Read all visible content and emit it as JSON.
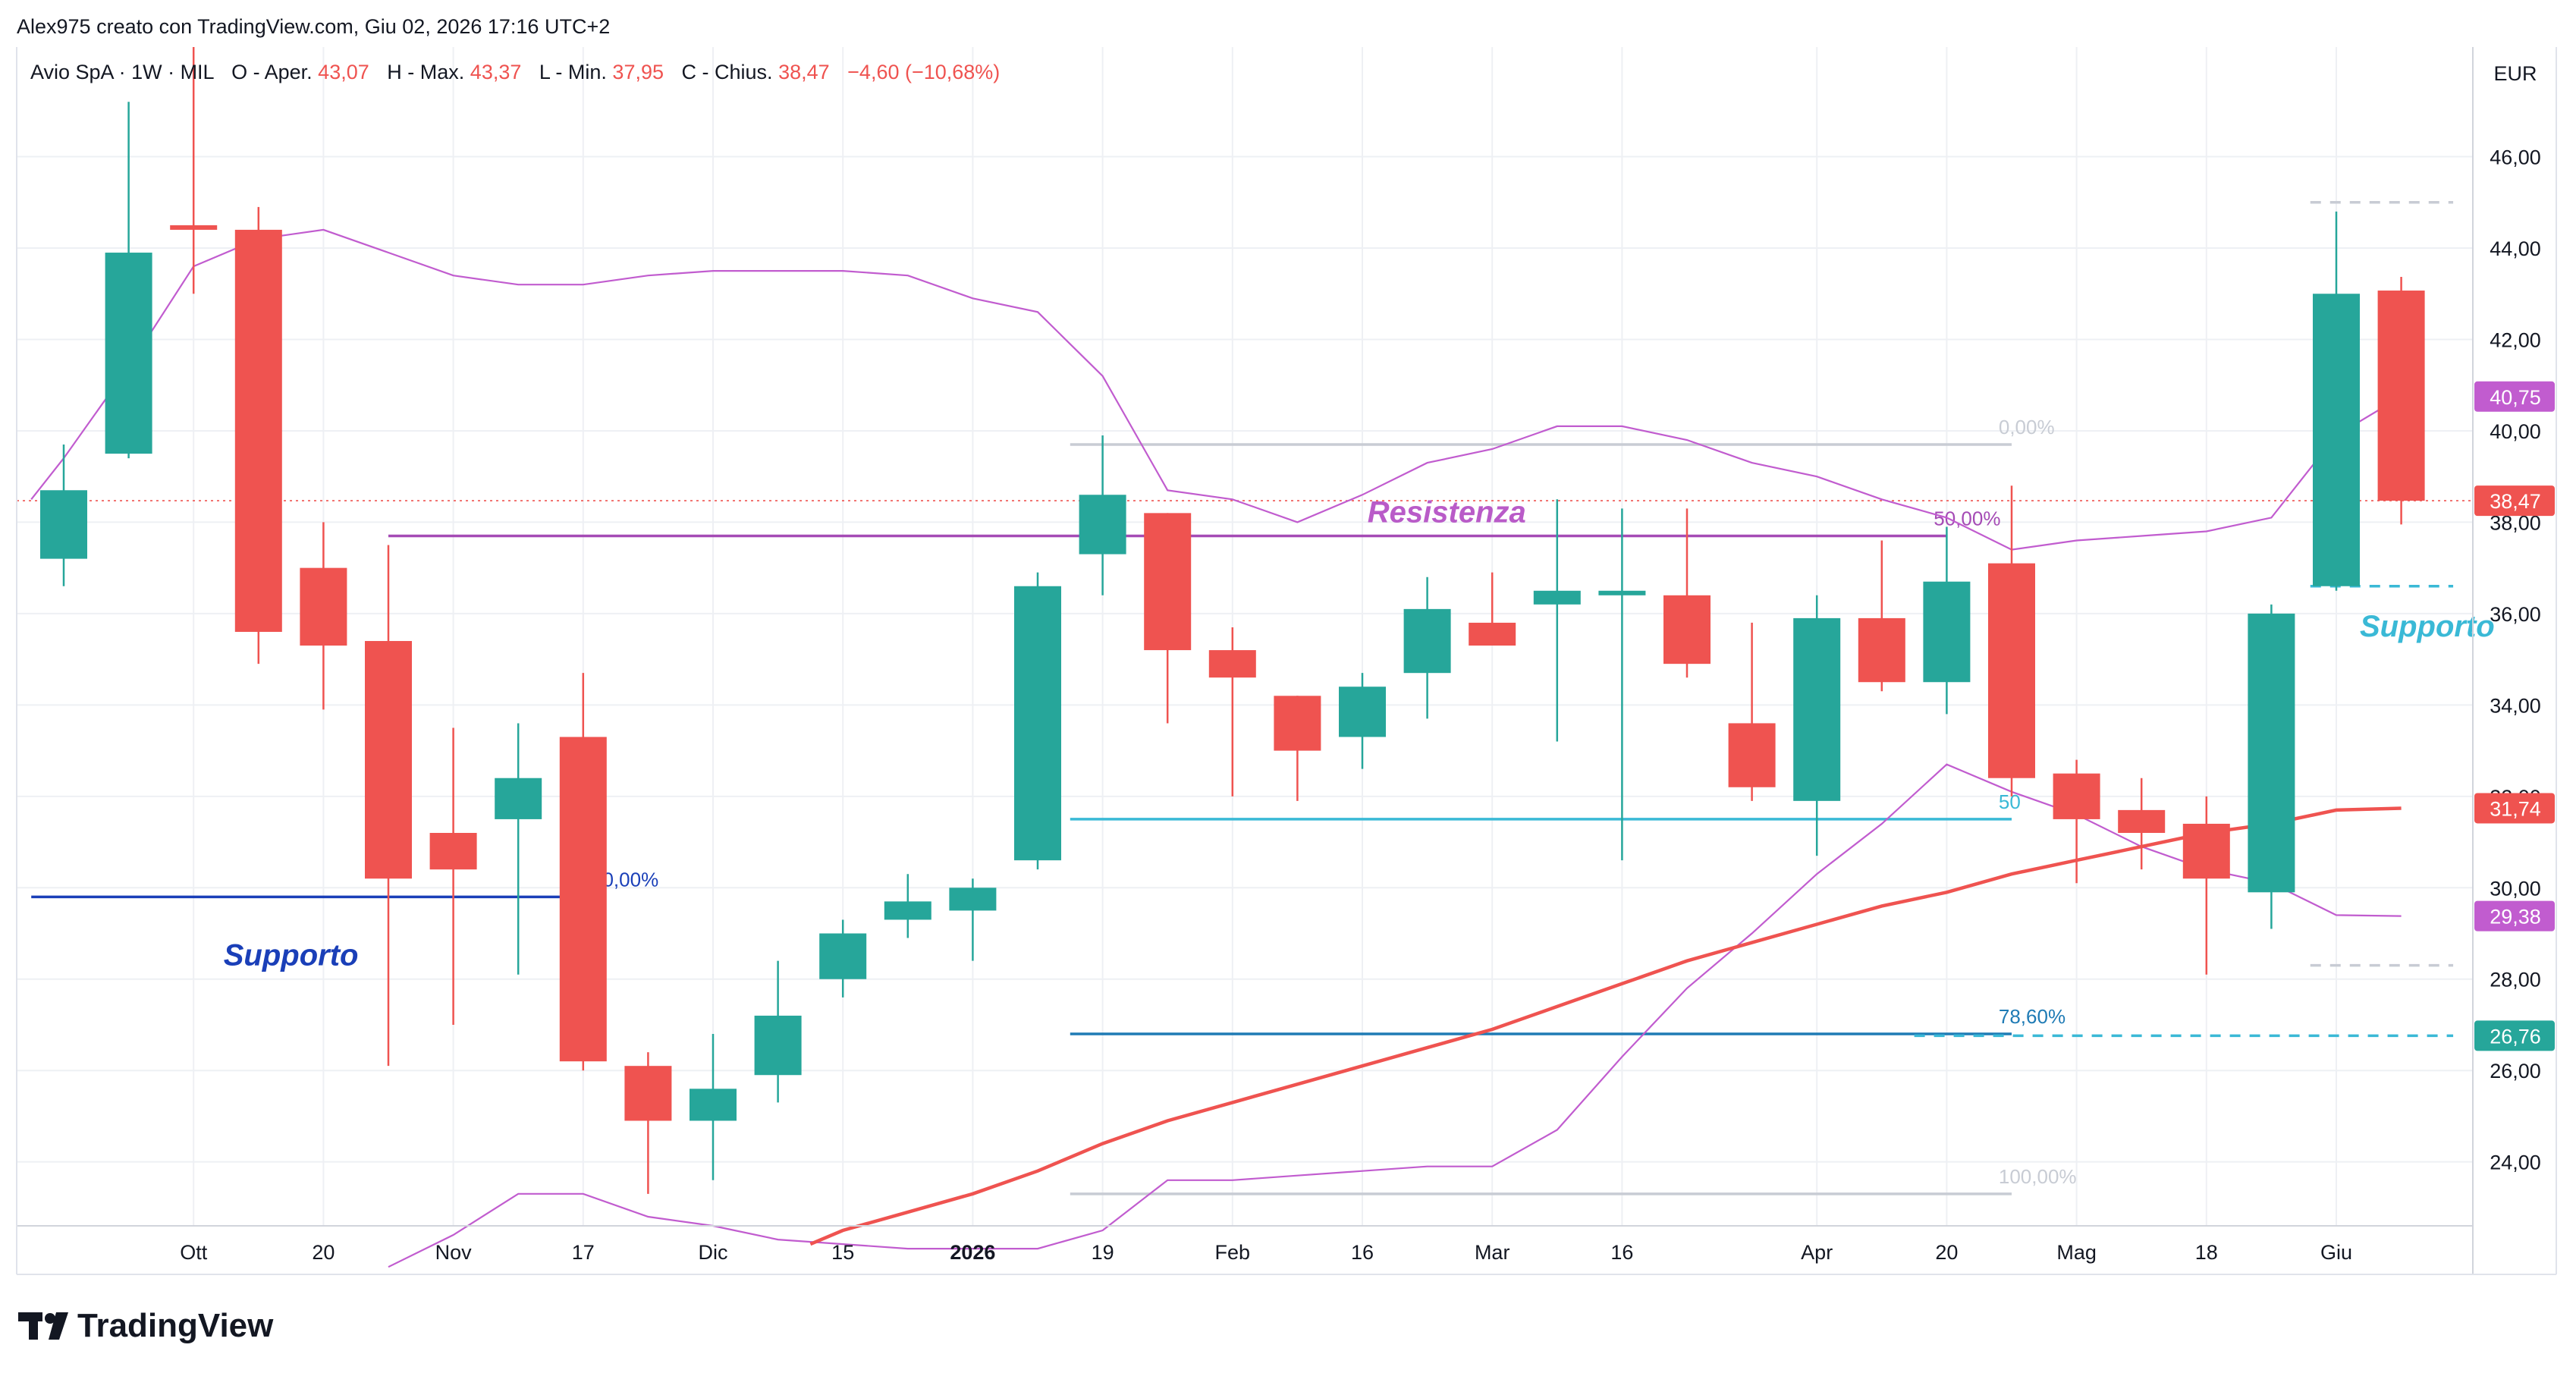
{
  "header": {
    "credit": "Alex975 creato con TradingView.com, Giu 02, 2026 17:16 UTC+2",
    "symbol": "Avio SpA · 1W · MIL",
    "open_label": "O - Aper.",
    "open_value": "43,07",
    "high_label": "H - Max.",
    "high_value": "43,37",
    "low_label": "L - Min.",
    "low_value": "37,95",
    "close_label": "C - Chius.",
    "close_value": "38,47",
    "change_value": "−4,60 (−10,68%)"
  },
  "currency": "EUR",
  "footer": {
    "brand": "TradingView"
  },
  "colors": {
    "up": "#26a69a",
    "down": "#ef5350",
    "bollinger": "#c15ccf",
    "moving_average": "#ef5350",
    "support_blue": "#1a3fb8",
    "fib_teal": "#3ab9d6",
    "fib_blue": "#1f7bb5",
    "fib_grey": "#c8ccd4",
    "grid": "#eef0f4"
  },
  "chart_data": {
    "type": "candlestick",
    "y_range": [
      22.6,
      48.4
    ],
    "y_ticks": [
      {
        "value": 24,
        "label": "24,00"
      },
      {
        "value": 26,
        "label": "26,00"
      },
      {
        "value": 28,
        "label": "28,00"
      },
      {
        "value": 30,
        "label": "30,00"
      },
      {
        "value": 32,
        "label": "32,00"
      },
      {
        "value": 34,
        "label": "34,00"
      },
      {
        "value": 36,
        "label": "36,00"
      },
      {
        "value": 38,
        "label": "38,00"
      },
      {
        "value": 40,
        "label": "40,00"
      },
      {
        "value": 42,
        "label": "42,00"
      },
      {
        "value": 44,
        "label": "44,00"
      },
      {
        "value": 46,
        "label": "46,00"
      }
    ],
    "x_ticks": [
      {
        "index": 2,
        "label": "Ott",
        "bold": false
      },
      {
        "index": 4,
        "label": "20",
        "bold": false
      },
      {
        "index": 6,
        "label": "Nov",
        "bold": false
      },
      {
        "index": 8,
        "label": "17",
        "bold": false
      },
      {
        "index": 10,
        "label": "Dic",
        "bold": false
      },
      {
        "index": 12,
        "label": "15",
        "bold": false
      },
      {
        "index": 14,
        "label": "2026",
        "bold": true
      },
      {
        "index": 16,
        "label": "19",
        "bold": false
      },
      {
        "index": 18,
        "label": "Feb",
        "bold": false
      },
      {
        "index": 20,
        "label": "16",
        "bold": false
      },
      {
        "index": 22,
        "label": "Mar",
        "bold": false
      },
      {
        "index": 24,
        "label": "16",
        "bold": false
      },
      {
        "index": 27,
        "label": "Apr",
        "bold": false
      },
      {
        "index": 29,
        "label": "20",
        "bold": false
      },
      {
        "index": 31,
        "label": "Mag",
        "bold": false
      },
      {
        "index": 33,
        "label": "18",
        "bold": false
      },
      {
        "index": 35,
        "label": "Giu",
        "bold": false
      }
    ],
    "candles": [
      {
        "o": 37.2,
        "h": 39.7,
        "l": 36.6,
        "c": 38.7
      },
      {
        "o": 39.5,
        "h": 47.2,
        "l": 39.4,
        "c": 43.9
      },
      {
        "o": 44.5,
        "h": 48.4,
        "l": 43.0,
        "c": 44.4
      },
      {
        "o": 44.4,
        "h": 44.9,
        "l": 34.9,
        "c": 35.6
      },
      {
        "o": 37.0,
        "h": 38.0,
        "l": 33.9,
        "c": 35.3
      },
      {
        "o": 35.4,
        "h": 37.5,
        "l": 26.1,
        "c": 30.2
      },
      {
        "o": 31.2,
        "h": 33.5,
        "l": 27.0,
        "c": 30.4
      },
      {
        "o": 31.5,
        "h": 33.6,
        "l": 28.1,
        "c": 32.4
      },
      {
        "o": 33.3,
        "h": 34.7,
        "l": 26.0,
        "c": 26.2
      },
      {
        "o": 26.1,
        "h": 26.4,
        "l": 23.3,
        "c": 24.9
      },
      {
        "o": 24.9,
        "h": 26.8,
        "l": 23.6,
        "c": 25.6
      },
      {
        "o": 25.9,
        "h": 28.4,
        "l": 25.3,
        "c": 27.2
      },
      {
        "o": 28.0,
        "h": 29.3,
        "l": 27.6,
        "c": 29.0
      },
      {
        "o": 29.3,
        "h": 30.3,
        "l": 28.9,
        "c": 29.7
      },
      {
        "o": 29.5,
        "h": 30.2,
        "l": 28.4,
        "c": 30.0
      },
      {
        "o": 30.6,
        "h": 36.9,
        "l": 30.4,
        "c": 36.6
      },
      {
        "o": 37.3,
        "h": 39.9,
        "l": 36.4,
        "c": 38.6
      },
      {
        "o": 38.2,
        "h": 38.2,
        "l": 33.6,
        "c": 35.2
      },
      {
        "o": 35.2,
        "h": 35.7,
        "l": 32.0,
        "c": 34.6
      },
      {
        "o": 34.2,
        "h": 34.2,
        "l": 31.9,
        "c": 33.0
      },
      {
        "o": 33.3,
        "h": 34.7,
        "l": 32.6,
        "c": 34.4
      },
      {
        "o": 34.7,
        "h": 36.8,
        "l": 33.7,
        "c": 36.1
      },
      {
        "o": 35.8,
        "h": 36.9,
        "l": 35.3,
        "c": 35.3
      },
      {
        "o": 36.2,
        "h": 38.5,
        "l": 33.2,
        "c": 36.5
      },
      {
        "o": 36.4,
        "h": 38.3,
        "l": 30.6,
        "c": 36.5
      },
      {
        "o": 36.4,
        "h": 38.3,
        "l": 34.6,
        "c": 34.9
      },
      {
        "o": 33.6,
        "h": 35.8,
        "l": 31.9,
        "c": 32.2
      },
      {
        "o": 31.9,
        "h": 36.4,
        "l": 30.7,
        "c": 35.9
      },
      {
        "o": 35.9,
        "h": 37.6,
        "l": 34.3,
        "c": 34.5
      },
      {
        "o": 34.5,
        "h": 37.9,
        "l": 33.8,
        "c": 36.7
      },
      {
        "o": 37.1,
        "h": 38.8,
        "l": 32.0,
        "c": 32.4
      },
      {
        "o": 32.5,
        "h": 32.8,
        "l": 30.1,
        "c": 31.5
      },
      {
        "o": 31.7,
        "h": 32.4,
        "l": 30.4,
        "c": 31.2
      },
      {
        "o": 31.4,
        "h": 32.0,
        "l": 28.1,
        "c": 30.2
      },
      {
        "o": 29.9,
        "h": 36.2,
        "l": 29.1,
        "c": 36.0
      },
      {
        "o": 36.6,
        "h": 44.8,
        "l": 36.5,
        "c": 43.0
      },
      {
        "o": 43.07,
        "h": 43.37,
        "l": 37.95,
        "c": 38.47
      }
    ],
    "indicators": {
      "bollinger_upper": [
        [
          -0.5,
          38.5
        ],
        [
          0,
          39.4
        ],
        [
          1,
          41.4
        ],
        [
          2,
          43.6
        ],
        [
          3,
          44.2
        ],
        [
          4,
          44.4
        ],
        [
          5,
          43.9
        ],
        [
          6,
          43.4
        ],
        [
          7,
          43.2
        ],
        [
          8,
          43.2
        ],
        [
          9,
          43.4
        ],
        [
          10,
          43.5
        ],
        [
          11,
          43.5
        ],
        [
          12,
          43.5
        ],
        [
          13,
          43.4
        ],
        [
          14,
          42.9
        ],
        [
          15,
          42.6
        ],
        [
          16,
          41.2
        ],
        [
          17,
          38.7
        ],
        [
          18,
          38.5
        ],
        [
          19,
          38.0
        ],
        [
          20,
          38.6
        ],
        [
          21,
          39.3
        ],
        [
          22,
          39.6
        ],
        [
          23,
          40.1
        ],
        [
          24,
          40.1
        ],
        [
          25,
          39.8
        ],
        [
          26,
          39.3
        ],
        [
          27,
          39.0
        ],
        [
          28,
          38.5
        ],
        [
          29,
          38.1
        ],
        [
          30,
          37.4
        ],
        [
          31,
          37.6
        ],
        [
          32,
          37.7
        ],
        [
          33,
          37.8
        ],
        [
          34,
          38.1
        ],
        [
          35,
          39.9
        ],
        [
          36,
          40.75
        ]
      ],
      "bollinger_lower": [
        [
          5,
          21.7
        ],
        [
          6,
          22.4
        ],
        [
          7,
          23.3
        ],
        [
          8,
          23.3
        ],
        [
          9,
          22.8
        ],
        [
          10,
          22.6
        ],
        [
          11,
          22.3
        ],
        [
          12,
          22.2
        ],
        [
          13,
          22.1
        ],
        [
          14,
          22.1
        ],
        [
          15,
          22.1
        ],
        [
          16,
          22.5
        ],
        [
          17,
          23.6
        ],
        [
          18,
          23.6
        ],
        [
          19,
          23.7
        ],
        [
          20,
          23.8
        ],
        [
          21,
          23.9
        ],
        [
          22,
          23.9
        ],
        [
          23,
          24.7
        ],
        [
          24,
          26.3
        ],
        [
          25,
          27.8
        ],
        [
          26,
          29.0
        ],
        [
          27,
          30.3
        ],
        [
          28,
          31.4
        ],
        [
          29,
          32.7
        ],
        [
          30,
          32.1
        ],
        [
          31,
          31.6
        ],
        [
          32,
          30.9
        ],
        [
          33,
          30.4
        ],
        [
          34,
          30.1
        ],
        [
          35,
          29.4
        ],
        [
          36,
          29.38
        ]
      ],
      "moving_average": [
        [
          11.5,
          22.2
        ],
        [
          12,
          22.5
        ],
        [
          13,
          22.9
        ],
        [
          14,
          23.3
        ],
        [
          15,
          23.8
        ],
        [
          16,
          24.4
        ],
        [
          17,
          24.9
        ],
        [
          18,
          25.3
        ],
        [
          19,
          25.7
        ],
        [
          20,
          26.1
        ],
        [
          21,
          26.5
        ],
        [
          22,
          26.9
        ],
        [
          23,
          27.4
        ],
        [
          24,
          27.9
        ],
        [
          25,
          28.4
        ],
        [
          26,
          28.8
        ],
        [
          27,
          29.2
        ],
        [
          28,
          29.6
        ],
        [
          29,
          29.9
        ],
        [
          30,
          30.3
        ],
        [
          31,
          30.6
        ],
        [
          32,
          30.9
        ],
        [
          33,
          31.2
        ],
        [
          34,
          31.4
        ],
        [
          35,
          31.7
        ],
        [
          36,
          31.74
        ]
      ]
    },
    "levels": [
      {
        "name": "support-line-blue",
        "value": 29.8,
        "from": -0.5,
        "to": 8,
        "color": "#1a3fb8",
        "label": "0,00%",
        "label_at": 8.3
      },
      {
        "name": "resistance-line",
        "value": 37.7,
        "from": 5,
        "to": 29,
        "color": "#a54bb5",
        "label": "50,00%",
        "label_at": 28.8
      },
      {
        "name": "fib-0",
        "value": 39.7,
        "from": 15.5,
        "to": 30,
        "color": "#c8ccd4",
        "label": "0,00%",
        "label_at": 29.8
      },
      {
        "name": "fib-50-lower",
        "value": 31.5,
        "from": 15.5,
        "to": 30,
        "color": "#3ab9d6",
        "label": "50",
        "label_at": 29.8
      },
      {
        "name": "fib-786",
        "value": 26.8,
        "from": 15.5,
        "to": 30,
        "color": "#1f7bb5",
        "label": "78,60%",
        "label_at": 29.8
      },
      {
        "name": "fib-100",
        "value": 23.3,
        "from": 15.5,
        "to": 30,
        "color": "#c8ccd4",
        "label": "100,00%",
        "label_at": 29.8
      }
    ],
    "dashed_levels": [
      {
        "name": "dashed-top",
        "value": 45.0,
        "from": 34.6,
        "to": 36.8,
        "color": "#c8ccd4"
      },
      {
        "name": "dashed-support",
        "value": 36.6,
        "from": 34.6,
        "to": 36.8,
        "color": "#3ab9d6"
      },
      {
        "name": "dashed-low",
        "value": 28.3,
        "from": 34.6,
        "to": 36.8,
        "color": "#c8ccd4"
      },
      {
        "name": "dashed-786",
        "value": 26.76,
        "from": 28.5,
        "to": 36.8,
        "color": "#3ab9d6"
      }
    ],
    "annotations": [
      {
        "name": "annotation-supporto-left",
        "text": "Supporto",
        "value": 28.3,
        "at": 3.5,
        "color": "#1a3fb8",
        "anchor": "middle"
      },
      {
        "name": "annotation-resistenza",
        "text": "Resistenza",
        "value": 38.0,
        "at": 21.3,
        "color": "#b95bc8",
        "anchor": "middle"
      },
      {
        "name": "annotation-supporto-right",
        "text": "Supporto",
        "value": 35.5,
        "at": 36.4,
        "color": "#3ab9d6",
        "anchor": "middle"
      }
    ],
    "price_labels": [
      {
        "name": "price-label-bollinger-upper",
        "value": 40.75,
        "text": "40,75",
        "color": "#c15ccf"
      },
      {
        "name": "price-label-last",
        "value": 38.47,
        "text": "38,47",
        "color": "#ef5350"
      },
      {
        "name": "price-label-ma",
        "value": 31.74,
        "text": "31,74",
        "color": "#ef5350"
      },
      {
        "name": "price-label-bollinger-lower",
        "value": 29.38,
        "text": "29,38",
        "color": "#c15ccf"
      },
      {
        "name": "price-label-fib",
        "value": 26.76,
        "text": "26,76",
        "color": "#26a69a"
      }
    ],
    "last_price": 38.47
  }
}
